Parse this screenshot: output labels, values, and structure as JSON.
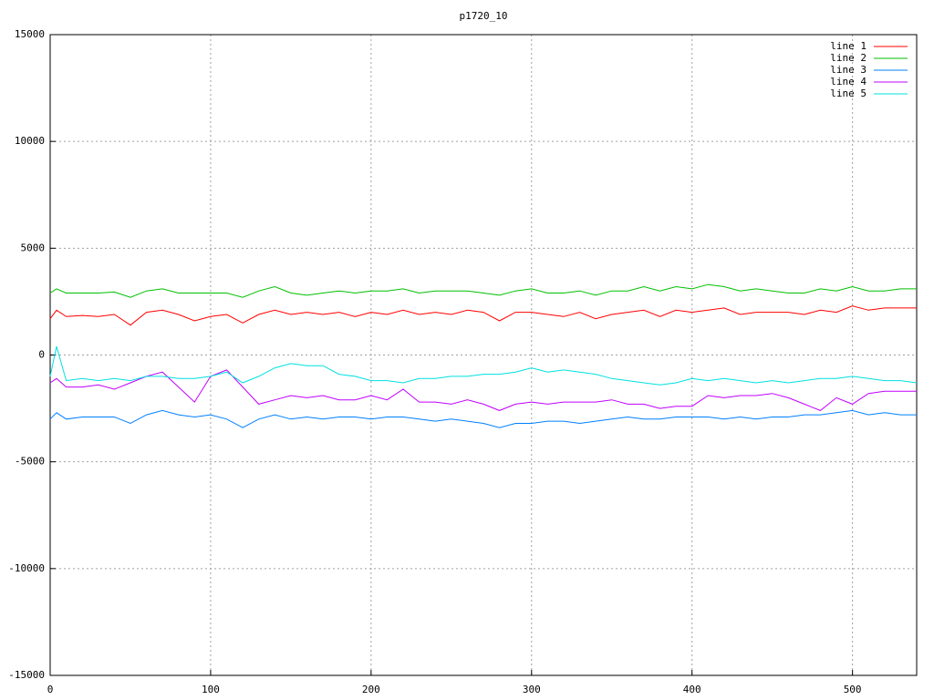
{
  "chart_data": {
    "type": "line",
    "title": "p1720_10",
    "x": [
      0,
      4,
      10,
      20,
      30,
      40,
      50,
      60,
      70,
      80,
      90,
      100,
      110,
      120,
      130,
      140,
      150,
      160,
      170,
      180,
      190,
      200,
      210,
      220,
      230,
      240,
      250,
      260,
      270,
      280,
      290,
      300,
      310,
      320,
      330,
      340,
      350,
      360,
      370,
      380,
      390,
      400,
      410,
      420,
      430,
      440,
      450,
      460,
      470,
      480,
      490,
      500,
      510,
      520,
      530,
      540
    ],
    "xlim": [
      0,
      540
    ],
    "xticks": [
      0,
      100,
      200,
      300,
      400,
      500
    ],
    "ylim": [
      -15000,
      15000
    ],
    "yticks": [
      -15000,
      -10000,
      -5000,
      0,
      5000,
      10000,
      15000
    ],
    "grid": true,
    "legend": "top-right",
    "series": [
      {
        "name": "line 1",
        "color": "#ff0000",
        "values": [
          1700,
          2100,
          1800,
          1850,
          1800,
          1900,
          1400,
          2000,
          2100,
          1900,
          1600,
          1800,
          1900,
          1500,
          1900,
          2100,
          1900,
          2000,
          1900,
          2000,
          1800,
          2000,
          1900,
          2100,
          1900,
          2000,
          1900,
          2100,
          2000,
          1600,
          2000,
          2000,
          1900,
          1800,
          2000,
          1700,
          1900,
          2000,
          2100,
          1800,
          2100,
          2000,
          2100,
          2200,
          1900,
          2000,
          2000,
          2000,
          1900,
          2100,
          2000,
          2300,
          2100,
          2200,
          2200,
          2200
        ]
      },
      {
        "name": "line 2",
        "color": "#00c000",
        "values": [
          2900,
          3100,
          2900,
          2900,
          2900,
          2950,
          2700,
          3000,
          3100,
          2900,
          2900,
          2900,
          2900,
          2700,
          3000,
          3200,
          2900,
          2800,
          2900,
          3000,
          2900,
          3000,
          3000,
          3100,
          2900,
          3000,
          3000,
          3000,
          2900,
          2800,
          3000,
          3100,
          2900,
          2900,
          3000,
          2800,
          3000,
          3000,
          3200,
          3000,
          3200,
          3100,
          3300,
          3200,
          3000,
          3100,
          3000,
          2900,
          2900,
          3100,
          3000,
          3200,
          3000,
          3000,
          3100,
          3100
        ]
      },
      {
        "name": "line 3",
        "color": "#0080ff",
        "values": [
          -3000,
          -2700,
          -3000,
          -2900,
          -2900,
          -2900,
          -3200,
          -2800,
          -2600,
          -2800,
          -2900,
          -2800,
          -3000,
          -3400,
          -3000,
          -2800,
          -3000,
          -2900,
          -3000,
          -2900,
          -2900,
          -3000,
          -2900,
          -2900,
          -3000,
          -3100,
          -3000,
          -3100,
          -3200,
          -3400,
          -3200,
          -3200,
          -3100,
          -3100,
          -3200,
          -3100,
          -3000,
          -2900,
          -3000,
          -3000,
          -2900,
          -2900,
          -2900,
          -3000,
          -2900,
          -3000,
          -2900,
          -2900,
          -2800,
          -2800,
          -2700,
          -2600,
          -2800,
          -2700,
          -2800,
          -2800
        ]
      },
      {
        "name": "line 4",
        "color": "#c000ff",
        "values": [
          -1300,
          -1100,
          -1500,
          -1500,
          -1400,
          -1600,
          -1300,
          -1000,
          -800,
          -1500,
          -2200,
          -1000,
          -700,
          -1500,
          -2300,
          -2100,
          -1900,
          -2000,
          -1900,
          -2100,
          -2100,
          -1900,
          -2100,
          -1600,
          -2200,
          -2200,
          -2300,
          -2100,
          -2300,
          -2600,
          -2300,
          -2200,
          -2300,
          -2200,
          -2200,
          -2200,
          -2100,
          -2300,
          -2300,
          -2500,
          -2400,
          -2400,
          -1900,
          -2000,
          -1900,
          -1900,
          -1800,
          -2000,
          -2300,
          -2600,
          -2000,
          -2300,
          -1800,
          -1700,
          -1700,
          -1700
        ]
      },
      {
        "name": "line 5",
        "color": "#00e0e0",
        "values": [
          -1000,
          400,
          -1200,
          -1100,
          -1200,
          -1100,
          -1200,
          -1000,
          -1000,
          -1100,
          -1100,
          -1000,
          -800,
          -1300,
          -1000,
          -600,
          -400,
          -500,
          -500,
          -900,
          -1000,
          -1200,
          -1200,
          -1300,
          -1100,
          -1100,
          -1000,
          -1000,
          -900,
          -900,
          -800,
          -600,
          -800,
          -700,
          -800,
          -900,
          -1100,
          -1200,
          -1300,
          -1400,
          -1300,
          -1100,
          -1200,
          -1100,
          -1200,
          -1300,
          -1200,
          -1300,
          -1200,
          -1100,
          -1100,
          -1000,
          -1100,
          -1200,
          -1200,
          -1300
        ]
      }
    ]
  }
}
